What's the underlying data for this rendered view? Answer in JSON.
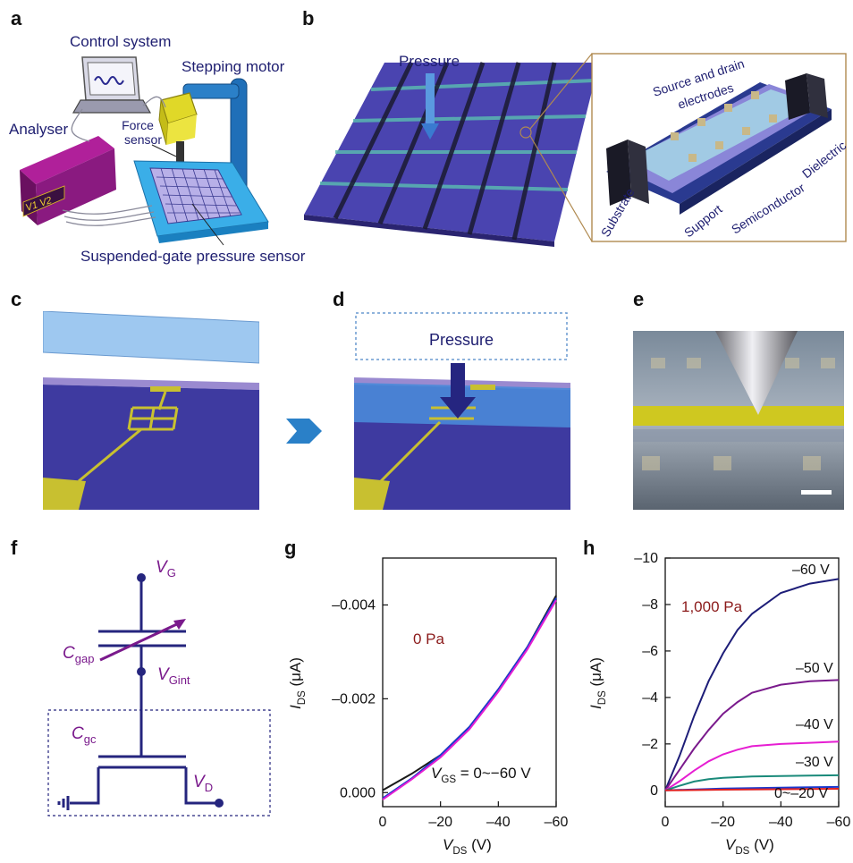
{
  "panel_letters": {
    "a": "a",
    "b": "b",
    "c": "c",
    "d": "d",
    "e": "e",
    "f": "f",
    "g": "g",
    "h": "h"
  },
  "panel_a": {
    "control_system": "Control system",
    "stepping_motor": "Stepping motor",
    "analyser": "Analyser",
    "force_sensor_1": "Force",
    "force_sensor_2": "sensor",
    "sensor_label": "Suspended-gate pressure sensor",
    "screen_text": "V1 V2"
  },
  "panel_b": {
    "pressure": "Pressure",
    "source_drain_1": "Source and drain",
    "source_drain_2": "electrodes",
    "dielectric": "Dielectric",
    "substrate": "Substrate",
    "support": "Support",
    "semiconductor": "Semiconductor"
  },
  "panel_d": {
    "pressure": "Pressure"
  },
  "panel_f": {
    "vg": "V",
    "vg_sub": "G",
    "cgap": "C",
    "cgap_sub": "gap",
    "vgint": "V",
    "vgint_sub": "Gint",
    "cgc": "C",
    "cgc_sub": "gc",
    "vd": "V",
    "vd_sub": "D"
  },
  "colors": {
    "navy": "#1d1d78",
    "maroon": "#8b1a1a",
    "magenta": "#e61ed2",
    "purple": "#7a1a8c",
    "teal": "#1a8a7a",
    "red": "#e02020",
    "blue": "#1a3ad0"
  },
  "chart_data": [
    {
      "type": "line",
      "panel": "g",
      "annotation": "0 Pa",
      "annotation2": "V",
      "annotation2_sub": "GS",
      "annotation2_rest": " = 0~−60 V",
      "xlabel": "V",
      "xlabel_sub": "DS",
      "xlabel_unit": " (V)",
      "ylabel": "I",
      "ylabel_sub": "DS",
      "ylabel_unit": " (μA)",
      "xlim": [
        0,
        -60
      ],
      "ylim": [
        0.0003,
        -0.005
      ],
      "xticks": [
        {
          "v": 0,
          "l": "0"
        },
        {
          "v": -20,
          "l": "–20"
        },
        {
          "v": -40,
          "l": "–40"
        },
        {
          "v": -60,
          "l": "–60"
        }
      ],
      "yticks": [
        {
          "v": 0,
          "l": "0.000"
        },
        {
          "v": -0.002,
          "l": "–0.002"
        },
        {
          "v": -0.004,
          "l": "–0.004"
        }
      ],
      "series": [
        {
          "color": "#1a1a1a",
          "x": [
            0,
            -10,
            -20,
            -30,
            -40,
            -50,
            -60
          ],
          "y": [
            -5e-05,
            -0.0004,
            -0.0008,
            -0.0014,
            -0.0022,
            -0.0031,
            -0.0042
          ]
        },
        {
          "color": "#1a3ad0",
          "x": [
            0,
            -10,
            -20,
            -30,
            -40,
            -50,
            -60
          ],
          "y": [
            0.00012,
            -0.0003,
            -0.0008,
            -0.0014,
            -0.0022,
            -0.0031,
            -0.00415
          ]
        },
        {
          "color": "#e61ed2",
          "x": [
            0,
            -10,
            -20,
            -30,
            -40,
            -50,
            -60
          ],
          "y": [
            0.00015,
            -0.00028,
            -0.00075,
            -0.00135,
            -0.00215,
            -0.00305,
            -0.0041
          ]
        }
      ]
    },
    {
      "type": "line",
      "panel": "h",
      "annotation": "1,000 Pa",
      "xlabel": "V",
      "xlabel_sub": "DS",
      "xlabel_unit": " (V)",
      "ylabel": "I",
      "ylabel_sub": "DS",
      "ylabel_unit": " (μA)",
      "xlim": [
        0,
        -60
      ],
      "ylim": [
        0.7,
        -10
      ],
      "xticks": [
        {
          "v": 0,
          "l": "0"
        },
        {
          "v": -20,
          "l": "–20"
        },
        {
          "v": -40,
          "l": "–40"
        },
        {
          "v": -60,
          "l": "–60"
        }
      ],
      "yticks": [
        {
          "v": 0,
          "l": "0"
        },
        {
          "v": -2,
          "l": "–2"
        },
        {
          "v": -4,
          "l": "–4"
        },
        {
          "v": -6,
          "l": "–6"
        },
        {
          "v": -8,
          "l": "–8"
        },
        {
          "v": -10,
          "l": "–10"
        }
      ],
      "series": [
        {
          "name": "–60 V",
          "color": "#1d1d78",
          "x": [
            0,
            -5,
            -10,
            -15,
            -20,
            -25,
            -30,
            -40,
            -50,
            -60
          ],
          "y": [
            0,
            -1.5,
            -3.2,
            -4.7,
            -5.9,
            -6.9,
            -7.6,
            -8.5,
            -8.9,
            -9.1
          ]
        },
        {
          "name": "–50 V",
          "color": "#7a1a8c",
          "x": [
            0,
            -5,
            -10,
            -15,
            -20,
            -25,
            -30,
            -40,
            -50,
            -60
          ],
          "y": [
            0,
            -0.9,
            -1.8,
            -2.6,
            -3.3,
            -3.8,
            -4.2,
            -4.55,
            -4.7,
            -4.75
          ]
        },
        {
          "name": "–40 V",
          "color": "#e61ed2",
          "x": [
            0,
            -5,
            -10,
            -15,
            -20,
            -25,
            -30,
            -40,
            -50,
            -60
          ],
          "y": [
            0,
            -0.4,
            -0.85,
            -1.25,
            -1.55,
            -1.75,
            -1.9,
            -2.0,
            -2.05,
            -2.1
          ]
        },
        {
          "name": "–30 V",
          "color": "#1a8a7a",
          "x": [
            0,
            -5,
            -10,
            -15,
            -20,
            -25,
            -30,
            -40,
            -50,
            -60
          ],
          "y": [
            0,
            -0.2,
            -0.38,
            -0.48,
            -0.54,
            -0.57,
            -0.6,
            -0.62,
            -0.64,
            -0.65
          ]
        },
        {
          "name": "",
          "color": "#1a3ad0",
          "x": [
            0,
            -20,
            -40,
            -60
          ],
          "y": [
            0,
            -0.08,
            -0.12,
            -0.15
          ]
        },
        {
          "name": "0~–20 V",
          "color": "#e02020",
          "x": [
            0,
            -20,
            -40,
            -60
          ],
          "y": [
            0,
            -0.03,
            -0.05,
            -0.07
          ]
        }
      ]
    }
  ]
}
